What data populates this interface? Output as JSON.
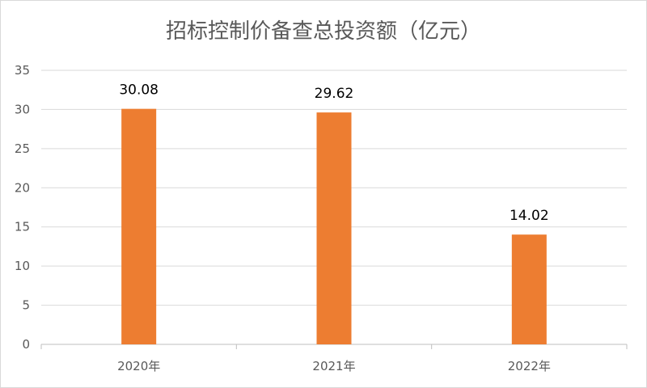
{
  "chart_data": {
    "type": "bar",
    "title": "招标控制价备查总投资额（亿元）",
    "categories": [
      "2020年",
      "2021年",
      "2022年"
    ],
    "values": [
      30.08,
      29.62,
      14.02
    ],
    "data_labels": [
      "30.08",
      "29.62",
      "14.02"
    ],
    "ylim": [
      0,
      35
    ],
    "yticks": [
      0,
      5,
      10,
      15,
      20,
      25,
      30,
      35
    ],
    "grid": true,
    "legend": "none",
    "bar_color": "#ED7D31"
  }
}
